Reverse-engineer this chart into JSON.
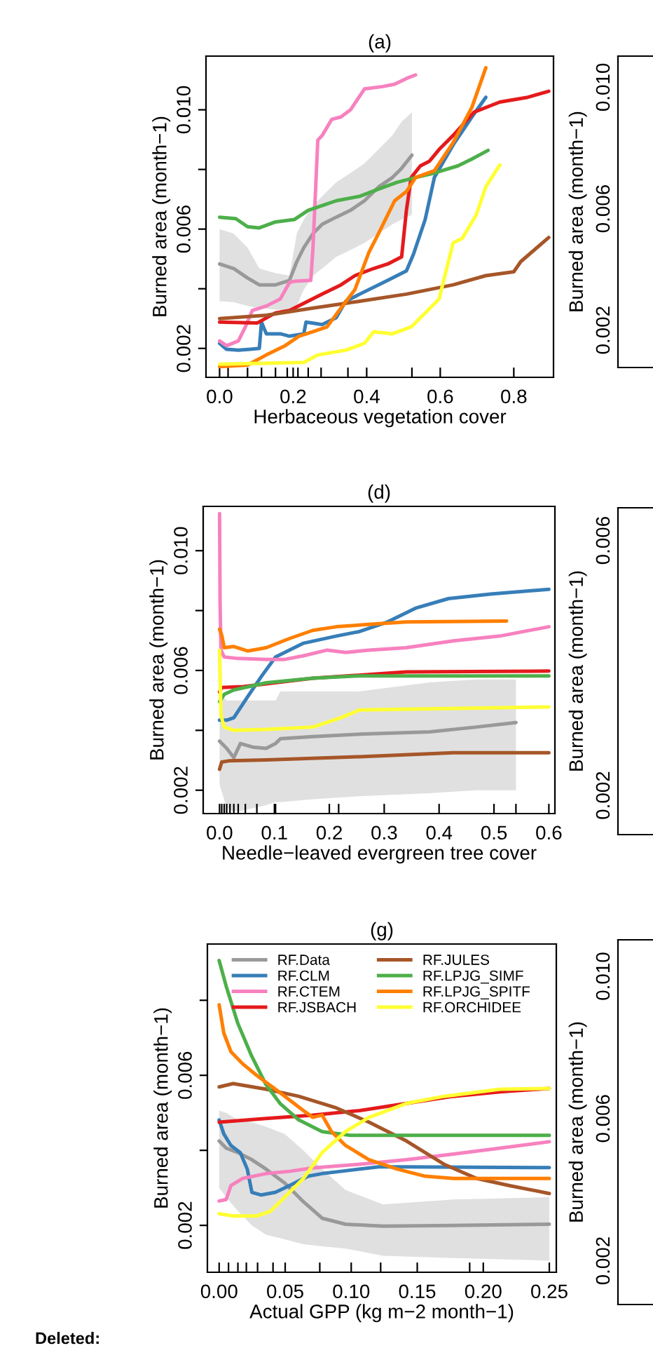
{
  "chart_data": [
    {
      "type": "line",
      "title": "(a)",
      "xlabel": "Herbaceous vegetation cover",
      "ylabel": "Burned area (month−1)",
      "xlim": [
        -0.037,
        0.908
      ],
      "ylim": [
        0.00103,
        0.0118
      ],
      "xticks": [
        {
          "value": 0.0,
          "label": "0.0"
        },
        {
          "value": 0.2,
          "label": "0.2"
        },
        {
          "value": 0.4,
          "label": "0.4"
        },
        {
          "value": 0.6,
          "label": "0.6"
        },
        {
          "value": 0.8,
          "label": "0.8"
        },
        {
          "value": 0.023,
          "label": null
        },
        {
          "value": 0.076,
          "label": null
        },
        {
          "value": 0.114,
          "label": null
        },
        {
          "value": 0.152,
          "label": null
        },
        {
          "value": 0.184,
          "label": null
        },
        {
          "value": 0.213,
          "label": null
        },
        {
          "value": 0.241,
          "label": null
        },
        {
          "value": 0.276,
          "label": null
        },
        {
          "value": 0.349,
          "label": null
        },
        {
          "value": 0.523,
          "label": null
        }
      ],
      "yticks": [
        {
          "value": 0.002,
          "label": "0.002"
        },
        {
          "value": 0.004,
          "label": null
        },
        {
          "value": 0.006,
          "label": "0.006"
        },
        {
          "value": 0.008,
          "label": null
        },
        {
          "value": 0.01,
          "label": "0.010"
        }
      ],
      "series": [
        {
          "color": "#999999",
          "x": [
            0,
            0.038,
            0.076,
            0.108,
            0.152,
            0.19,
            0.21,
            0.229,
            0.254,
            0.279,
            0.317,
            0.356,
            0.394,
            0.432,
            0.47,
            0.495,
            0.523
          ],
          "values": [
            0.00483,
            0.00468,
            0.00436,
            0.00413,
            0.00413,
            0.00428,
            0.00491,
            0.00538,
            0.00585,
            0.00616,
            0.0064,
            0.00663,
            0.00695,
            0.00741,
            0.00773,
            0.00804,
            0.00848
          ],
          "lower": [
            0.00358,
            0.00355,
            0.00342,
            0.00335,
            0.0033,
            0.00327,
            0.00342,
            0.00397,
            0.00444,
            0.00468,
            0.00507,
            0.0053,
            0.00554,
            0.00585,
            0.00616,
            0.00632,
            0.00648
          ],
          "upper": [
            0.006,
            0.00585,
            0.00538,
            0.00468,
            0.00452,
            0.00444,
            0.00585,
            0.00632,
            0.00679,
            0.0071,
            0.00757,
            0.00788,
            0.0082,
            0.00867,
            0.00914,
            0.0096,
            0.00992
          ]
        },
        {
          "color": "#377eb8",
          "x": [
            0,
            0.019,
            0.051,
            0.083,
            0.108,
            0.114,
            0.127,
            0.165,
            0.19,
            0.229,
            0.235,
            0.279,
            0.317,
            0.343,
            0.381,
            0.457,
            0.508,
            0.527,
            0.559,
            0.584,
            0.635,
            0.686,
            0.724
          ],
          "values": [
            0.00217,
            0.00197,
            0.00194,
            0.00197,
            0.002,
            0.00288,
            0.00249,
            0.00249,
            0.00241,
            0.00249,
            0.00288,
            0.0028,
            0.00303,
            0.00358,
            0.00382,
            0.00428,
            0.0046,
            0.00515,
            0.00632,
            0.00773,
            0.00882,
            0.00976,
            0.01042
          ]
        },
        {
          "color": "#f781bf",
          "x": [
            0,
            0.019,
            0.051,
            0.07,
            0.089,
            0.127,
            0.165,
            0.19,
            0.203,
            0.248,
            0.254,
            0.267,
            0.279,
            0.305,
            0.33,
            0.356,
            0.394,
            0.444,
            0.476,
            0.508,
            0.533
          ],
          "values": [
            0.00225,
            0.00209,
            0.00225,
            0.00272,
            0.00327,
            0.00342,
            0.00366,
            0.00421,
            0.00425,
            0.00428,
            0.00538,
            0.00898,
            0.00914,
            0.00968,
            0.00976,
            0.01,
            0.0107,
            0.01078,
            0.01086,
            0.01105,
            0.01117
          ]
        },
        {
          "color": "#e41a1c",
          "x": [
            0,
            0.102,
            0.152,
            0.19,
            0.279,
            0.33,
            0.368,
            0.419,
            0.457,
            0.495,
            0.508,
            0.521,
            0.546,
            0.571,
            0.597,
            0.635,
            0.692,
            0.762,
            0.838,
            0.895
          ],
          "values": [
            0.00288,
            0.00285,
            0.00319,
            0.00327,
            0.00382,
            0.00413,
            0.00444,
            0.00468,
            0.00483,
            0.00507,
            0.00663,
            0.00773,
            0.00812,
            0.00828,
            0.00867,
            0.00914,
            0.00992,
            0.01026,
            0.01042,
            0.01062
          ]
        },
        {
          "color": "#a65628",
          "x": [
            0,
            0.127,
            0.254,
            0.381,
            0.508,
            0.635,
            0.724,
            0.8,
            0.819,
            0.895
          ],
          "values": [
            0.003,
            0.00311,
            0.00335,
            0.00358,
            0.00382,
            0.00413,
            0.00444,
            0.00457,
            0.00491,
            0.00572
          ]
        },
        {
          "color": "#4daf4a",
          "x": [
            0,
            0.044,
            0.076,
            0.108,
            0.152,
            0.203,
            0.241,
            0.279,
            0.317,
            0.381,
            0.432,
            0.483,
            0.533,
            0.584,
            0.648,
            0.686,
            0.73
          ],
          "values": [
            0.0064,
            0.00635,
            0.00608,
            0.00604,
            0.00624,
            0.00632,
            0.00663,
            0.00679,
            0.00695,
            0.0071,
            0.00734,
            0.00757,
            0.00773,
            0.00788,
            0.00812,
            0.00835,
            0.00864
          ]
        },
        {
          "color": "#ff7f00",
          "x": [
            0,
            0.076,
            0.127,
            0.178,
            0.216,
            0.254,
            0.292,
            0.33,
            0.368,
            0.406,
            0.432,
            0.476,
            0.508,
            0.533,
            0.584,
            0.635,
            0.686,
            0.724
          ],
          "values": [
            0.00139,
            0.00144,
            0.00178,
            0.00209,
            0.00241,
            0.00256,
            0.00272,
            0.00335,
            0.00397,
            0.00522,
            0.00585,
            0.00695,
            0.00726,
            0.00773,
            0.00796,
            0.0089,
            0.01008,
            0.01141
          ]
        },
        {
          "color": "#ffff33",
          "x": [
            0,
            0.229,
            0.267,
            0.343,
            0.394,
            0.419,
            0.47,
            0.521,
            0.559,
            0.597,
            0.635,
            0.66,
            0.698,
            0.724,
            0.762
          ],
          "values": [
            0.00147,
            0.00153,
            0.00178,
            0.00194,
            0.00217,
            0.00256,
            0.00249,
            0.00272,
            0.00319,
            0.00366,
            0.00554,
            0.00569,
            0.00648,
            0.00742,
            0.00815
          ]
        }
      ]
    },
    {
      "type": "other",
      "ylabel": "Burned area (month−1)",
      "annotations": [
        "0.002",
        "0.006",
        "0.010"
      ]
    },
    {
      "type": "line",
      "title": "(d)",
      "xlabel": "Needle−leaved evergreen tree cover",
      "ylabel": "Burned area (month−1)",
      "xlim": [
        -0.0298,
        0.611
      ],
      "ylim": [
        0.00122,
        0.01148
      ],
      "xticks": [
        {
          "value": 0.0,
          "label": "0.0"
        },
        {
          "value": 0.1,
          "label": "0.1"
        },
        {
          "value": 0.2,
          "label": "0.2"
        },
        {
          "value": 0.3,
          "label": "0.3"
        },
        {
          "value": 0.4,
          "label": "0.4"
        },
        {
          "value": 0.5,
          "label": "0.5"
        },
        {
          "value": 0.6,
          "label": "0.6"
        },
        {
          "value": 0.004,
          "label": null
        },
        {
          "value": 0.0085,
          "label": null
        },
        {
          "value": 0.013,
          "label": null
        },
        {
          "value": 0.019,
          "label": null
        },
        {
          "value": 0.026,
          "label": null
        },
        {
          "value": 0.034,
          "label": null
        },
        {
          "value": 0.047,
          "label": null
        },
        {
          "value": 0.068,
          "label": null
        },
        {
          "value": 0.102,
          "label": null
        },
        {
          "value": 0.217,
          "label": null
        },
        {
          "value": 0.54,
          "label": null
        }
      ],
      "yticks": [
        {
          "value": 0.002,
          "label": "0.002"
        },
        {
          "value": 0.004,
          "label": null
        },
        {
          "value": 0.006,
          "label": "0.006"
        },
        {
          "value": 0.008,
          "label": null
        },
        {
          "value": 0.01,
          "label": "0.010"
        }
      ],
      "series": [
        {
          "color": "#999999",
          "x": [
            0,
            0.013,
            0.026,
            0.038,
            0.06,
            0.085,
            0.102,
            0.111,
            0.17,
            0.255,
            0.383,
            0.468,
            0.54
          ],
          "values": [
            0.00364,
            0.0034,
            0.00309,
            0.00356,
            0.00344,
            0.0034,
            0.00356,
            0.00372,
            0.00379,
            0.00387,
            0.00395,
            0.00411,
            0.00426
          ],
          "lower": [
            0.0022,
            0.0014,
            0.0013,
            0.0013,
            0.0014,
            0.0015,
            0.0016,
            0.0016,
            0.0017,
            0.0018,
            0.0019,
            0.002,
            0.002
          ],
          "upper": [
            0.0052,
            0.005,
            0.005,
            0.005,
            0.005,
            0.005,
            0.005,
            0.0053,
            0.0053,
            0.0053,
            0.0056,
            0.0057,
            0.0057
          ]
        },
        {
          "color": "#377eb8",
          "x": [
            0,
            0.013,
            0.026,
            0.051,
            0.077,
            0.102,
            0.153,
            0.213,
            0.255,
            0.306,
            0.357,
            0.417,
            0.494,
            0.6
          ],
          "values": [
            0.00434,
            0.00434,
            0.00442,
            0.00512,
            0.00582,
            0.00645,
            0.00691,
            0.00715,
            0.0073,
            0.00762,
            0.00808,
            0.0084,
            0.00855,
            0.00871
          ]
        },
        {
          "color": "#f781bf",
          "x": [
            0,
            0.001,
            0.0026,
            0.0085,
            0.034,
            0.085,
            0.119,
            0.153,
            0.196,
            0.23,
            0.272,
            0.34,
            0.426,
            0.511,
            0.6
          ],
          "values": [
            0.01124,
            0.00824,
            0.00668,
            0.00645,
            0.0064,
            0.00637,
            0.00637,
            0.00649,
            0.00668,
            0.0066,
            0.00668,
            0.00676,
            0.00699,
            0.00715,
            0.00746
          ]
        },
        {
          "color": "#e41a1c",
          "x": [
            0,
            0.004,
            0.043,
            0.17,
            0.34,
            0.6
          ],
          "values": [
            0.00528,
            0.00543,
            0.00546,
            0.00574,
            0.00595,
            0.00598
          ]
        },
        {
          "color": "#a65628",
          "x": [
            0,
            0.004,
            0.017,
            0.085,
            0.255,
            0.426,
            0.6
          ],
          "values": [
            0.0027,
            0.00294,
            0.00298,
            0.00301,
            0.00312,
            0.00325,
            0.00325
          ]
        },
        {
          "color": "#4daf4a",
          "x": [
            0,
            0.0085,
            0.026,
            0.085,
            0.17,
            0.255,
            0.6
          ],
          "values": [
            0.00496,
            0.0052,
            0.00535,
            0.00559,
            0.00574,
            0.00582,
            0.00582
          ]
        },
        {
          "color": "#ff7f00",
          "x": [
            0,
            0.004,
            0.0085,
            0.026,
            0.051,
            0.085,
            0.128,
            0.17,
            0.213,
            0.272,
            0.34,
            0.523
          ],
          "values": [
            0.00738,
            0.00718,
            0.00676,
            0.0068,
            0.00665,
            0.00676,
            0.00707,
            0.00734,
            0.00746,
            0.00754,
            0.00762,
            0.00765
          ]
        },
        {
          "color": "#ffff33",
          "x": [
            0,
            0.0026,
            0.0085,
            0.026,
            0.085,
            0.17,
            0.221,
            0.255,
            0.6
          ],
          "values": [
            0.00668,
            0.0045,
            0.00411,
            0.004,
            0.00403,
            0.00411,
            0.00442,
            0.00468,
            0.00478
          ]
        }
      ]
    },
    {
      "type": "other",
      "ylabel": "Burned area (month−1)",
      "annotations": [
        "0.002",
        "0.006"
      ]
    },
    {
      "type": "line",
      "title": "(g)",
      "xlabel": "Actual GPP (kg m−2 month−1)",
      "ylabel": "Burned area (month−1)",
      "xlim": [
        -0.0089,
        0.2553
      ],
      "ylim": [
        0.00075,
        0.0095
      ],
      "legend": "top",
      "annotations": [
        "Deleted:"
      ],
      "xticks": [
        {
          "value": 0.0,
          "label": "0.00"
        },
        {
          "value": 0.05,
          "label": "0.05"
        },
        {
          "value": 0.1,
          "label": "0.10"
        },
        {
          "value": 0.15,
          "label": "0.15"
        },
        {
          "value": 0.2,
          "label": "0.20"
        },
        {
          "value": 0.25,
          "label": "0.25"
        },
        {
          "value": 0.0071,
          "label": null
        },
        {
          "value": 0.0142,
          "label": null
        },
        {
          "value": 0.0206,
          "label": null
        },
        {
          "value": 0.0291,
          "label": null
        },
        {
          "value": 0.0408,
          "label": null
        },
        {
          "value": 0.0762,
          "label": null
        },
        {
          "value": 0.1223,
          "label": null
        },
        {
          "value": 0.1897,
          "label": null
        }
      ],
      "yticks": [
        {
          "value": 0.002,
          "label": "0.002"
        },
        {
          "value": 0.004,
          "label": null
        },
        {
          "value": 0.006,
          "label": "0.006"
        },
        {
          "value": 0.008,
          "label": null
        }
      ],
      "series": [
        {
          "name": "RF.Data",
          "color": "#999999",
          "x": [
            0,
            0.0053,
            0.0142,
            0.0248,
            0.0355,
            0.0496,
            0.0638,
            0.078,
            0.0957,
            0.1241,
            0.1773,
            0.25
          ],
          "values": [
            0.00425,
            0.00406,
            0.00394,
            0.00375,
            0.0035,
            0.00313,
            0.00263,
            0.00219,
            0.00203,
            0.00198,
            0.002,
            0.00203
          ],
          "lower": [
            0.003,
            0.00275,
            0.00238,
            0.002,
            0.00175,
            0.00163,
            0.0015,
            0.00144,
            0.00138,
            0.00119,
            0.00113,
            0.00106
          ],
          "upper": [
            0.00506,
            0.005,
            0.00481,
            0.00475,
            0.00463,
            0.00444,
            0.004,
            0.0035,
            0.00294,
            0.00256,
            0.00269,
            0.00275
          ]
        },
        {
          "name": "RF.CLM",
          "color": "#377eb8",
          "x": [
            0,
            0.0035,
            0.0089,
            0.016,
            0.0213,
            0.0248,
            0.0319,
            0.0426,
            0.0532,
            0.0674,
            0.078,
            0.0922,
            0.1206,
            0.1418,
            0.25
          ],
          "values": [
            0.00481,
            0.00444,
            0.00413,
            0.00394,
            0.0035,
            0.00288,
            0.00281,
            0.00288,
            0.00306,
            0.00331,
            0.00338,
            0.00344,
            0.00356,
            0.00356,
            0.00354
          ]
        },
        {
          "name": "RF.CTEM",
          "color": "#f781bf",
          "x": [
            0,
            0.0053,
            0.0089,
            0.0177,
            0.0355,
            0.0532,
            0.0709,
            0.1064,
            0.1418,
            0.1773,
            0.2128,
            0.25
          ],
          "values": [
            0.00265,
            0.00269,
            0.00306,
            0.00325,
            0.00338,
            0.00344,
            0.00353,
            0.00363,
            0.00375,
            0.0039,
            0.00406,
            0.00423
          ]
        },
        {
          "name": "RF.JSBACH",
          "color": "#e41a1c",
          "x": [
            0,
            0.0355,
            0.0709,
            0.1064,
            0.1418,
            0.1773,
            0.2128,
            0.25
          ],
          "values": [
            0.00475,
            0.00485,
            0.00494,
            0.00506,
            0.00525,
            0.00544,
            0.00556,
            0.00565
          ]
        },
        {
          "name": "RF.JULES",
          "color": "#a65628",
          "x": [
            0,
            0.0106,
            0.0355,
            0.0603,
            0.0887,
            0.1135,
            0.1418,
            0.1702,
            0.195,
            0.2199,
            0.25
          ],
          "values": [
            0.00569,
            0.00578,
            0.00563,
            0.00544,
            0.00513,
            0.00475,
            0.00425,
            0.00363,
            0.00325,
            0.00306,
            0.00285
          ]
        },
        {
          "name": "RF.LPJG_SIMF",
          "color": "#4daf4a",
          "x": [
            0,
            0.0053,
            0.0142,
            0.0248,
            0.0355,
            0.0461,
            0.0603,
            0.078,
            0.0993,
            0.1418,
            0.25
          ],
          "values": [
            0.00906,
            0.00838,
            0.00738,
            0.0065,
            0.00575,
            0.00525,
            0.00481,
            0.0045,
            0.0044,
            0.0044,
            0.0044
          ]
        },
        {
          "name": "RF.LPJG_SPITF",
          "color": "#ff7f00",
          "x": [
            0,
            0.0035,
            0.0089,
            0.0177,
            0.0284,
            0.0426,
            0.0567,
            0.0638,
            0.0709,
            0.078,
            0.0851,
            0.0957,
            0.1135,
            0.1348,
            0.156,
            0.1773,
            0.25
          ],
          "values": [
            0.00788,
            0.00713,
            0.00663,
            0.00631,
            0.006,
            0.00563,
            0.00525,
            0.00506,
            0.00488,
            0.00494,
            0.0045,
            0.00413,
            0.00375,
            0.0035,
            0.00331,
            0.00325,
            0.00325
          ]
        },
        {
          "name": "RF.ORCHIDEE",
          "color": "#ffff33",
          "x": [
            0,
            0.0106,
            0.0284,
            0.039,
            0.0496,
            0.0638,
            0.078,
            0.0957,
            0.1135,
            0.1418,
            0.1702,
            0.2128,
            0.25
          ],
          "values": [
            0.00231,
            0.00225,
            0.00225,
            0.00238,
            0.00275,
            0.00325,
            0.00394,
            0.0045,
            0.00488,
            0.00525,
            0.00544,
            0.00563,
            0.00565
          ]
        }
      ]
    },
    {
      "type": "other",
      "ylabel": "Burned area (month−1)",
      "annotations": [
        "0.002",
        "0.006",
        "0.010"
      ]
    }
  ]
}
